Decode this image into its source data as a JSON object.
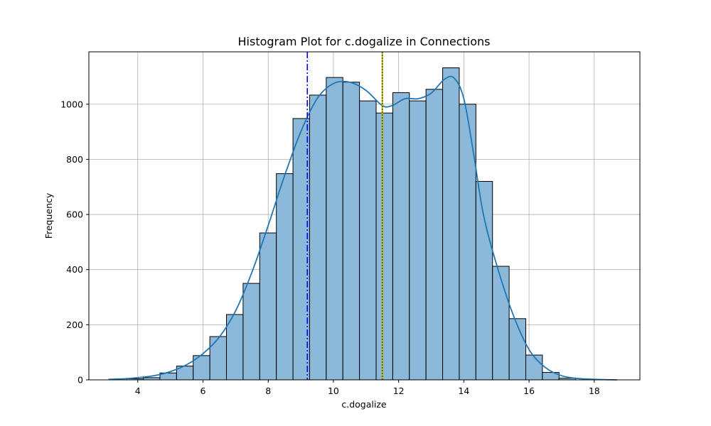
{
  "chart_data": {
    "type": "histogram",
    "title": "Histogram Plot for c.dogalize in Connections",
    "xlabel": "c.dogalize",
    "ylabel": "Frequency",
    "xlim": [
      2.5,
      19.4
    ],
    "ylim": [
      0,
      1190
    ],
    "xticks": [
      4,
      6,
      8,
      10,
      12,
      14,
      16,
      18
    ],
    "yticks": [
      0,
      200,
      400,
      600,
      800,
      1000
    ],
    "grid": true,
    "colors": {
      "bar_fill": "#8cb8da",
      "bar_edge": "#000000",
      "kde": "#1f77b4",
      "mean_line": "#ff0000",
      "median_line": "#008000",
      "mode_line": "#0000ff",
      "other_line": "#ffa500",
      "grid": "#b0b0b0"
    },
    "bins": {
      "edges": [
        3.66,
        4.17,
        4.68,
        5.19,
        5.7,
        6.21,
        6.72,
        7.23,
        7.74,
        8.25,
        8.76,
        9.27,
        9.78,
        10.29,
        10.8,
        11.31,
        11.82,
        12.33,
        12.84,
        13.35,
        13.86,
        14.37,
        14.88,
        15.39,
        15.9,
        16.41,
        16.92,
        17.43
      ],
      "counts": [
        4,
        8,
        25,
        50,
        88,
        157,
        237,
        350,
        533,
        748,
        948,
        1033,
        1097,
        1080,
        1012,
        968,
        1042,
        1012,
        1054,
        1132,
        1000,
        720,
        412,
        222,
        90,
        27,
        6
      ]
    },
    "kde": {
      "x": [
        3.1,
        3.6,
        4.0,
        4.5,
        5.0,
        5.5,
        6.0,
        6.5,
        7.0,
        7.5,
        8.0,
        8.5,
        9.0,
        9.5,
        10.0,
        10.5,
        11.0,
        11.5,
        11.8,
        12.2,
        12.6,
        13.0,
        13.4,
        13.7,
        14.0,
        14.3,
        14.6,
        15.0,
        15.5,
        16.0,
        16.5,
        17.0,
        17.5,
        18.0,
        18.7
      ],
      "y": [
        2,
        4,
        8,
        15,
        30,
        55,
        95,
        155,
        250,
        390,
        560,
        740,
        900,
        1020,
        1075,
        1080,
        1050,
        995,
        995,
        1020,
        1020,
        1040,
        1090,
        1095,
        1020,
        820,
        600,
        420,
        240,
        110,
        45,
        15,
        5,
        2,
        0
      ]
    },
    "vlines": [
      {
        "x": 9.2,
        "style": "dashdot",
        "color": "#0000ff"
      },
      {
        "x": 11.5,
        "style": "solid",
        "color": "#ffa500"
      },
      {
        "x": 11.5,
        "style": "dotted",
        "color": "#ff0000"
      },
      {
        "x": 11.5,
        "style": "dotted",
        "color": "#008000"
      }
    ]
  }
}
